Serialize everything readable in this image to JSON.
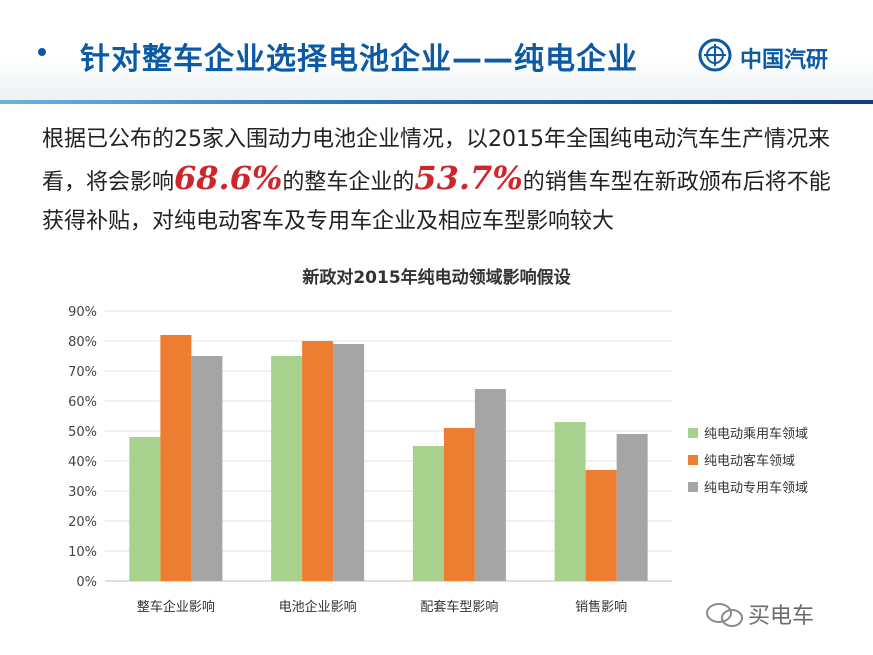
{
  "slide": {
    "title": "针对整车企业选择电池企业——纯电企业",
    "logo_text": "中国汽研",
    "body_pre": "根据已公布的25家入围动力电池企业情况，以2015年全国纯电动汽车生产情况来看，将会影响",
    "highlight1": "68.6%",
    "body_mid": "的整车企业的",
    "highlight2": "53.7%",
    "body_post": "的销售车型在新政颁布后将不能获得补贴，对纯电动客车及专用车企业及相应车型影响较大",
    "watermark": "买电车"
  },
  "colors": {
    "title": "#0b5aa3",
    "highlight": "#d0252a"
  },
  "chart_data": {
    "type": "bar",
    "title": "新政对2015年纯电动领域影响假设",
    "categories": [
      "整车企业影响",
      "电池企业影响",
      "配套车型影响",
      "销售影响"
    ],
    "series": [
      {
        "name": "纯电动乘用车领域",
        "color": "#a9d18e",
        "values": [
          48,
          75,
          45,
          53
        ]
      },
      {
        "name": "纯电动客车领域",
        "color": "#ed7d31",
        "values": [
          82,
          80,
          51,
          37
        ]
      },
      {
        "name": "纯电动专用车领域",
        "color": "#a5a5a5",
        "values": [
          75,
          79,
          64,
          49
        ]
      }
    ],
    "ylim": [
      0,
      90
    ],
    "ytick_labels": [
      "0%",
      "10%",
      "20%",
      "30%",
      "40%",
      "50%",
      "60%",
      "70%",
      "80%",
      "90%"
    ],
    "grid": true,
    "legend": "right"
  }
}
